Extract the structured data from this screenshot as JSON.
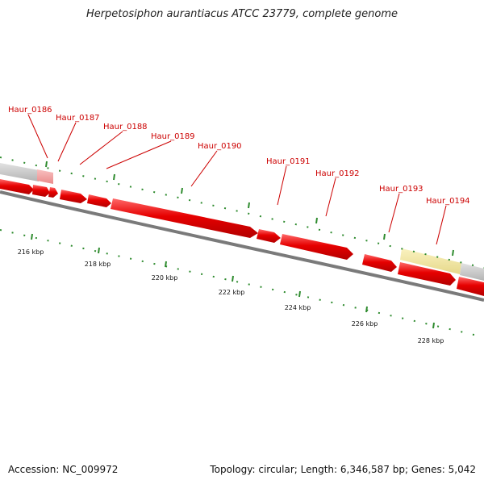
{
  "title": "Herpetosiphon aurantiacus ATCC 23779, complete genome",
  "footer": {
    "accession": "Accession: NC_009972",
    "stats": "Topology: circular; Length: 6,346,587 bp; Genes: 5,042"
  },
  "colors": {
    "gene": "#e60000",
    "gene_highlight": "#f3a0a0",
    "backbone": "#8a8a8a",
    "grey_feature": "#c8c8c8",
    "yellow_feature": "#f2e6a0",
    "tick": "#2e8b2e",
    "label_line": "#cc0000",
    "label_text": "#cc0000"
  },
  "gene_labels": [
    "Haur_0186",
    "Haur_0187",
    "Haur_0188",
    "Haur_0189",
    "Haur_0190",
    "Haur_0191",
    "Haur_0192",
    "Haur_0193",
    "Haur_0194"
  ],
  "kbp_labels": [
    "216 kbp",
    "218 kbp",
    "220 kbp",
    "222 kbp",
    "224 kbp",
    "226 kbp",
    "228 kbp"
  ]
}
